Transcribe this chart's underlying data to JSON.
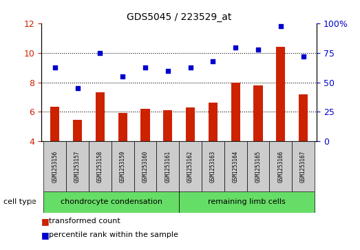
{
  "title": "GDS5045 / 223529_at",
  "samples": [
    "GSM1253156",
    "GSM1253157",
    "GSM1253158",
    "GSM1253159",
    "GSM1253160",
    "GSM1253161",
    "GSM1253162",
    "GSM1253163",
    "GSM1253164",
    "GSM1253165",
    "GSM1253166",
    "GSM1253167"
  ],
  "transformed_count": [
    6.35,
    5.45,
    7.35,
    5.95,
    6.2,
    6.1,
    6.3,
    6.65,
    8.0,
    7.8,
    10.45,
    7.2
  ],
  "percentile_rank": [
    63,
    45,
    75,
    55,
    63,
    60,
    63,
    68,
    80,
    78,
    98,
    72
  ],
  "ylim_left": [
    4,
    12
  ],
  "ylim_right": [
    0,
    100
  ],
  "yticks_left": [
    4,
    6,
    8,
    10,
    12
  ],
  "yticks_right": [
    0,
    25,
    50,
    75,
    100
  ],
  "bar_color": "#cc2200",
  "dot_color": "#0000cc",
  "grid_color": "#000000",
  "cell_type_groups": [
    {
      "label": "chondrocyte condensation",
      "count": 6,
      "color": "#66dd66"
    },
    {
      "label": "remaining limb cells",
      "count": 6,
      "color": "#66dd66"
    }
  ],
  "cell_type_label": "cell type",
  "legend_items": [
    {
      "label": "transformed count",
      "color": "#cc2200"
    },
    {
      "label": "percentile rank within the sample",
      "color": "#0000cc"
    }
  ],
  "bg_color": "#ffffff",
  "plot_bg": "#ffffff",
  "tick_label_color_left": "#cc2200",
  "tick_label_color_right": "#0000cc",
  "sample_box_color": "#cccccc",
  "bar_width": 0.4
}
